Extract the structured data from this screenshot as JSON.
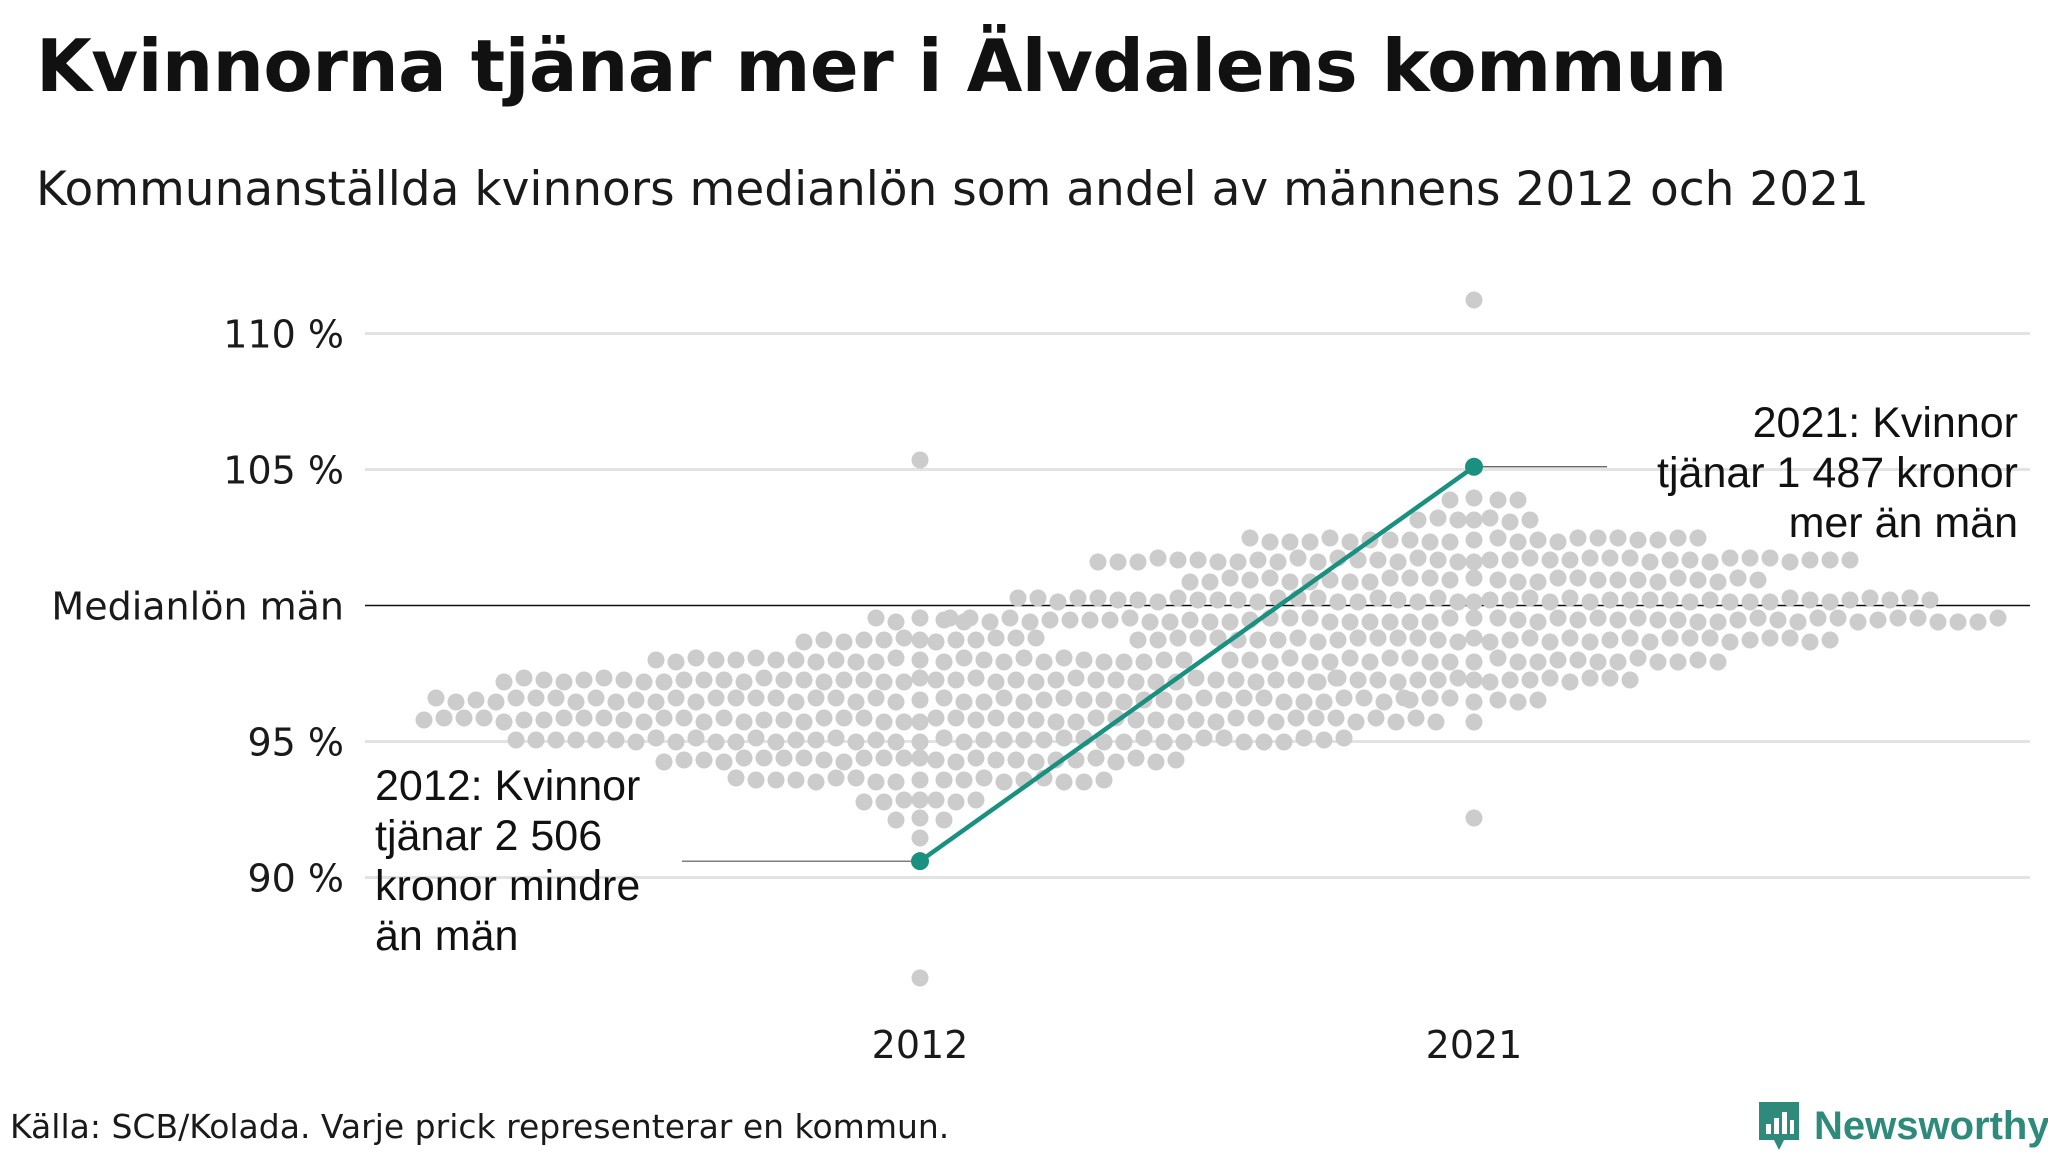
{
  "title": "Kvinnorna tjänar mer i Älvdalens kommun",
  "subtitle": "Kommunanställda kvinnors medianlön som andel av männens 2012 och 2021",
  "source": "Källa: SCB/Kolada. Varje prick representerar en kommun.",
  "brand": {
    "name": "Newsworthy",
    "icon": "bar-chart-logo-icon",
    "color": "#2e8b7b"
  },
  "colors": {
    "dots": "#cccccc",
    "highlight": "#1a9080",
    "grid": "#e3e3e3",
    "reference": "#111111"
  },
  "chart_data": {
    "type": "scatter",
    "title": "Kvinnorna tjänar mer i Älvdalens kommun",
    "subtitle": "Kommunanställda kvinnors medianlön som andel av männens 2012 och 2021",
    "categories": [
      "2012",
      "2021"
    ],
    "y_ticks": [
      {
        "value": 90,
        "label": "90 %"
      },
      {
        "value": 95,
        "label": "95 %"
      },
      {
        "value": 100,
        "label": "Medianlön män"
      },
      {
        "value": 105,
        "label": "105 %"
      },
      {
        "value": 110,
        "label": "110 %"
      }
    ],
    "ylim": [
      85.5,
      112
    ],
    "grid": true,
    "reference_line": {
      "value": 100,
      "label": "Medianlön män"
    },
    "distribution": [
      {
        "x": "2012",
        "count": 290,
        "center": 96.1,
        "min": 86.5,
        "max": 105.2,
        "note": "one dot per municipality"
      },
      {
        "x": "2021",
        "count": 290,
        "center": 100.1,
        "min": 92.4,
        "max": 111.4,
        "note": "one dot per municipality"
      }
    ],
    "highlight": {
      "name": "Älvdalen",
      "points": [
        {
          "x": "2012",
          "y": 90.6
        },
        {
          "x": "2021",
          "y": 105.1
        }
      ]
    },
    "annotations": [
      {
        "x": "2012",
        "lines": [
          "2012: Kvinnor",
          "tjänar 2 506",
          "kronor mindre",
          "än män"
        ]
      },
      {
        "x": "2021",
        "lines": [
          "2021: Kvinnor",
          "tjänar 1 487 kronor",
          "mer än män"
        ]
      }
    ]
  }
}
